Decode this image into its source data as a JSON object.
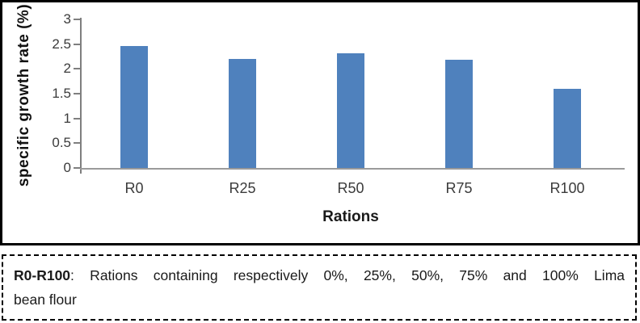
{
  "chart_data": {
    "type": "bar",
    "categories": [
      "R0",
      "R25",
      "R50",
      "R75",
      "R100"
    ],
    "values": [
      2.46,
      2.2,
      2.32,
      2.18,
      1.6
    ],
    "title": "",
    "xlabel": "Rations",
    "ylabel": "specific growth rate (%)",
    "ylim": [
      0,
      3
    ],
    "yticks": [
      0,
      0.5,
      1,
      1.5,
      2,
      2.5,
      3
    ],
    "ytick_labels": [
      "0",
      "0.5",
      "1",
      "1.5",
      "2",
      "2.5",
      "3"
    ],
    "grid": false,
    "legend": "none",
    "bar_color": "#4f81bd",
    "x_axis_color": "#9a9a9a",
    "y_axis_color": "#7f7f7f",
    "tick_text_color": "#3b3b3b"
  },
  "caption": {
    "term": "R0-R100",
    "line1_rest": ": Rations containing respectively 0%, 25%, 50%, 75% and 100% Lima",
    "line2": "bean flour"
  }
}
